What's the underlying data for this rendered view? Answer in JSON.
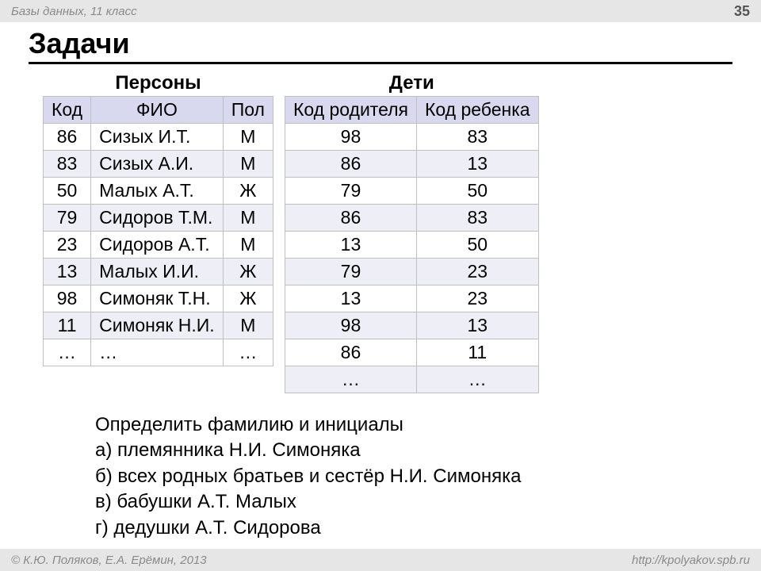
{
  "header": {
    "subject": "Базы данных, 11 класс",
    "page_number": "35"
  },
  "title": "Задачи",
  "colors": {
    "header_bg": "#e6e6e6",
    "header_text": "#8a8a8a",
    "table_header_bg": "#d8d8ef",
    "row_alt_bg": "#eeeef7",
    "border": "#bfbfbf"
  },
  "persons_table": {
    "caption": "Персоны",
    "columns": [
      "Код",
      "ФИО",
      "Пол"
    ],
    "col_align": [
      "center",
      "left",
      "center"
    ],
    "rows": [
      [
        "86",
        "Сизых И.Т.",
        "М"
      ],
      [
        "83",
        "Сизых А.И.",
        "М"
      ],
      [
        "50",
        "Малых А.Т.",
        "Ж"
      ],
      [
        "79",
        "Сидоров Т.М.",
        "М"
      ],
      [
        "23",
        "Сидоров А.Т.",
        "М"
      ],
      [
        "13",
        "Малых И.И.",
        "Ж"
      ],
      [
        "98",
        "Симоняк Т.Н.",
        "Ж"
      ],
      [
        "11",
        "Симоняк Н.И.",
        "М"
      ],
      [
        "…",
        "…",
        "…"
      ]
    ]
  },
  "children_table": {
    "caption": "Дети",
    "columns": [
      "Код родителя",
      "Код ребенка"
    ],
    "col_align": [
      "center",
      "center"
    ],
    "rows": [
      [
        "98",
        "83"
      ],
      [
        "86",
        "13"
      ],
      [
        "79",
        "50"
      ],
      [
        "86",
        "83"
      ],
      [
        "13",
        "50"
      ],
      [
        "79",
        "23"
      ],
      [
        "13",
        "23"
      ],
      [
        "98",
        "13"
      ],
      [
        "86",
        "11"
      ],
      [
        "…",
        "…"
      ]
    ]
  },
  "questions": {
    "intro": "Определить фамилию и инициалы",
    "items": [
      "а) племянника Н.И. Симоняка",
      "б) всех родных братьев и сестёр Н.И. Симоняка",
      "в) бабушки А.Т. Малых",
      "г)  дедушки А.Т. Сидорова"
    ]
  },
  "footer": {
    "authors": "© К.Ю. Поляков, Е.А. Ерёмин, 2013",
    "url": "http://kpolyakov.spb.ru"
  }
}
